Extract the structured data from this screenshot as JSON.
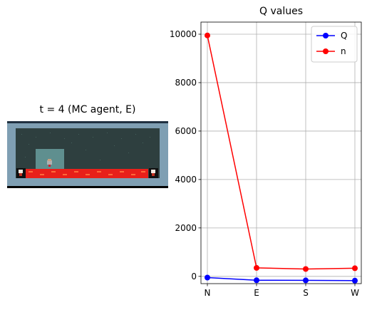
{
  "left_panel": {
    "title": "t = 4 (MC agent, E)",
    "scene": {
      "wall_color": "#7f9fb3",
      "floor_color": "#2e3f3f",
      "lava_color": "#e8201a",
      "highlight_color": "#5f8f8f",
      "icons": [
        "agent-sprite",
        "lava-strip",
        "left-door-icon",
        "right-door-icon"
      ]
    }
  },
  "chart_data": {
    "type": "line",
    "title": "Q values",
    "categories": [
      "N",
      "E",
      "S",
      "W"
    ],
    "series": [
      {
        "name": "Q",
        "color": "#0000ff",
        "values": [
          -50,
          -160,
          -165,
          -175
        ]
      },
      {
        "name": "n",
        "color": "#ff0000",
        "values": [
          9950,
          350,
          305,
          335
        ]
      }
    ],
    "ylim": [
      -300,
      10500
    ],
    "yticks": [
      0,
      2000,
      4000,
      6000,
      8000,
      10000
    ],
    "xlabel": "",
    "ylabel": "",
    "grid": true,
    "legend_position": "top-right"
  }
}
